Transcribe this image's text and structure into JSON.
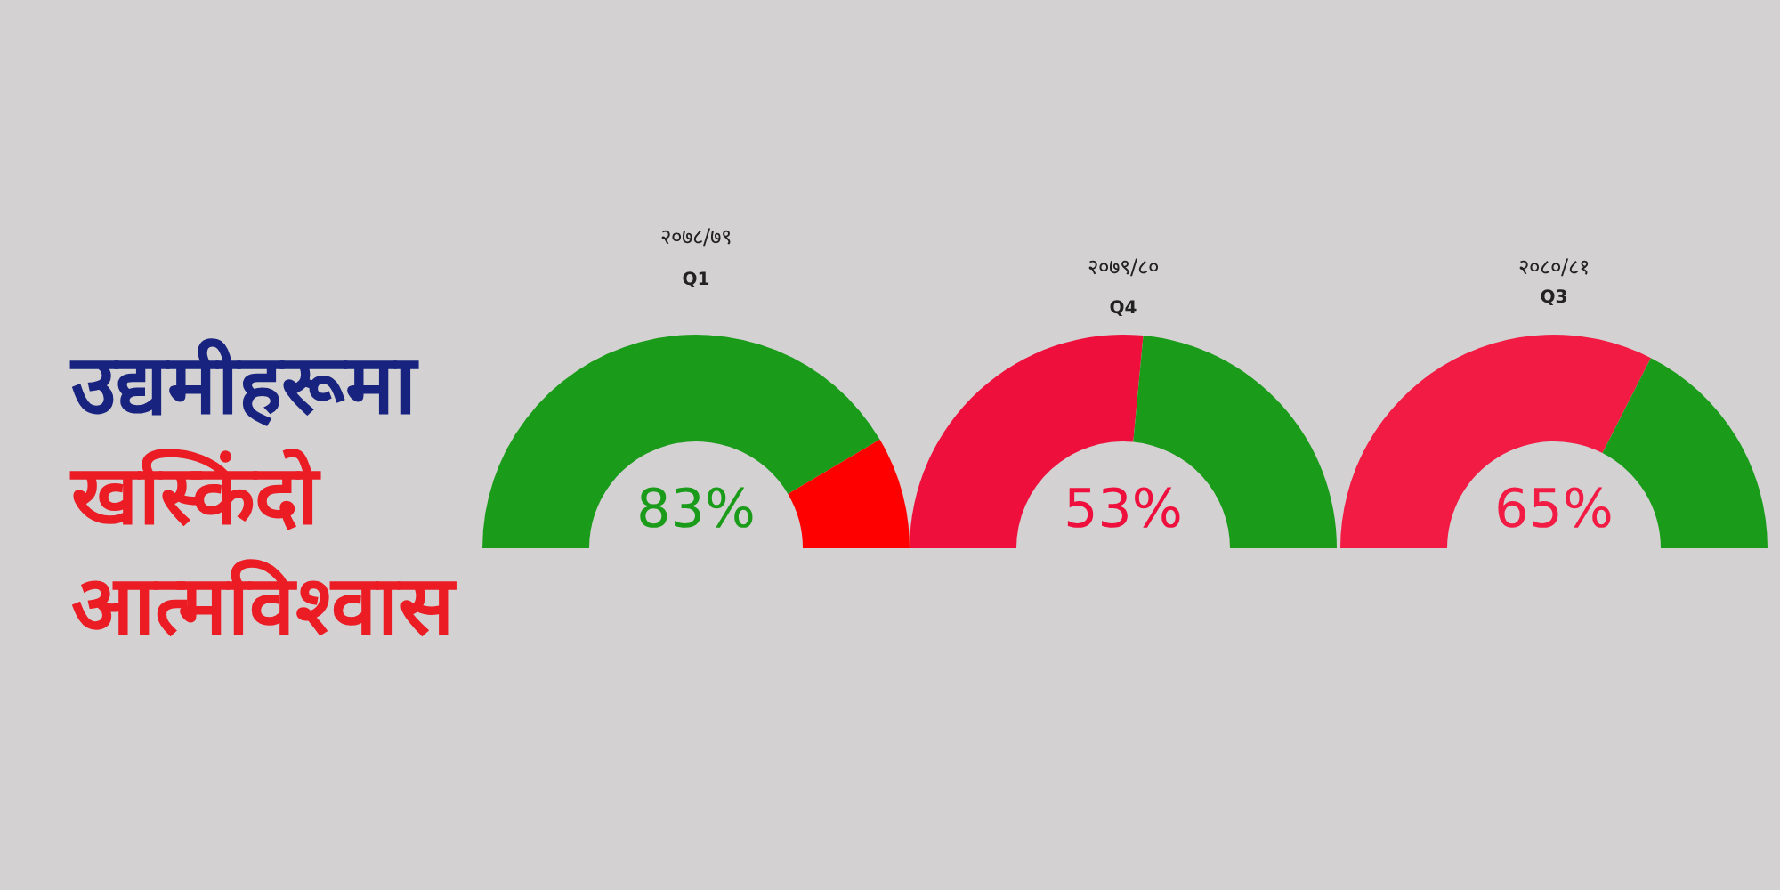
{
  "chart_data": [
    {
      "type": "other",
      "annotations": [
        "उद्यमीहरूमा",
        "खस्किंदो",
        "आत्मविश्वास"
      ]
    },
    {
      "type": "donut",
      "title": "२०७८/७९",
      "subtitle": "Q1",
      "categories": [
        null,
        null
      ],
      "values": [
        83,
        17
      ],
      "colors": [
        "#1a9c1a",
        "#ff0000"
      ],
      "value_labels": [
        "83%",
        null
      ]
    },
    {
      "type": "donut",
      "title": "२०७९/८०",
      "subtitle": "Q4",
      "categories": [
        null,
        null
      ],
      "values": [
        53,
        47
      ],
      "colors": [
        "#ef0f3d",
        "#1a9c1a"
      ],
      "value_labels": [
        "53%",
        null
      ]
    },
    {
      "type": "donut",
      "title": "२०८०/८१",
      "subtitle": "Q3",
      "categories": [
        null,
        null
      ],
      "values": [
        65,
        35
      ],
      "colors": [
        "#f21b44",
        "#1a9c1a"
      ],
      "value_labels": [
        "65%",
        null
      ]
    }
  ]
}
